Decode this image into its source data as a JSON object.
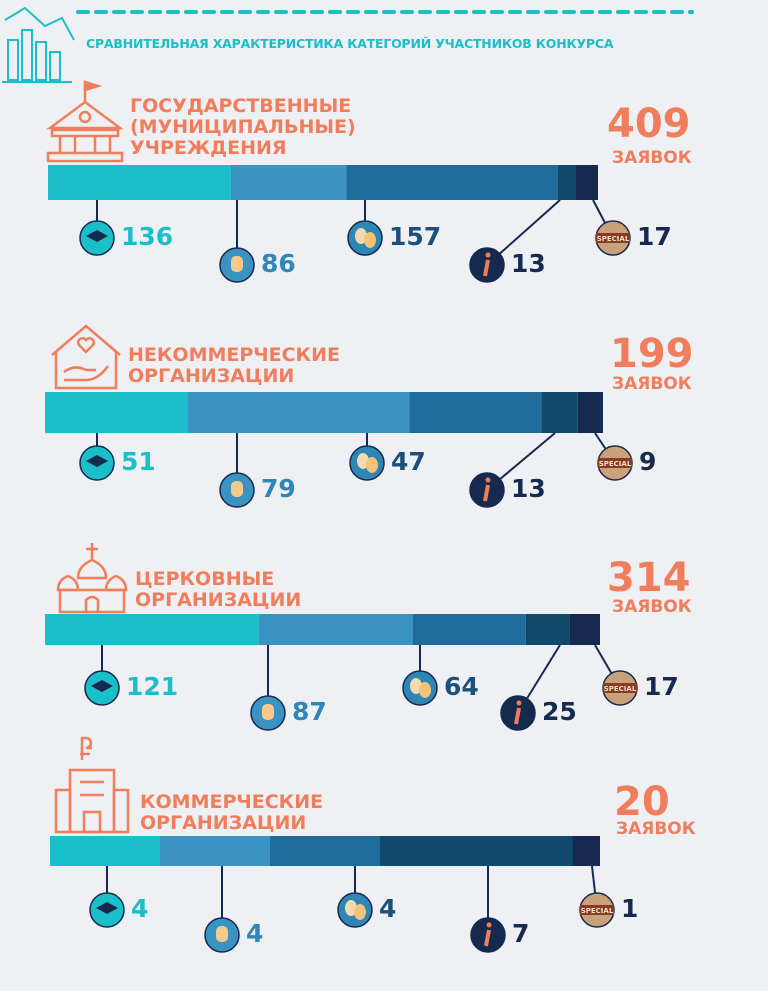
{
  "header": {
    "title": "СРАВНИТЕЛЬНАЯ ХАРАКТЕРИСТИКА КАТЕГОРИЙ УЧАСТНИКОВ КОНКУРСА"
  },
  "unit": "ЗАЯВОК",
  "badge_label": "SPECIAL",
  "segment_colors": [
    "#1bbfc9",
    "#3a93c0",
    "#1f6b9b",
    "#0f4a6d",
    "#16294e"
  ],
  "label_colors": [
    "#1bbfc9",
    "#2f86b8",
    "#1d4f7a",
    "#16294e",
    "#16294e"
  ],
  "groups": [
    {
      "name": [
        "ГОСУДАРСТВЕННЫЕ",
        "(МУНИЦИПАЛЬНЫЕ)",
        "УЧРЕЖДЕНИЯ"
      ],
      "total": 409,
      "values": [
        136,
        86,
        157,
        13,
        17
      ]
    },
    {
      "name": [
        "НЕКОММЕРЧЕСКИЕ",
        "ОРГАНИЗАЦИИ"
      ],
      "total": 199,
      "values": [
        51,
        79,
        47,
        13,
        9
      ]
    },
    {
      "name": [
        "ЦЕРКОВНЫЕ",
        "ОРГАНИЗАЦИИ"
      ],
      "total": 314,
      "values": [
        121,
        87,
        64,
        25,
        17
      ]
    },
    {
      "name": [
        "КОММЕРЧЕСКИЕ",
        "ОРГАНИЗАЦИИ"
      ],
      "total": 20,
      "values": [
        4,
        4,
        4,
        7,
        1
      ]
    }
  ]
}
